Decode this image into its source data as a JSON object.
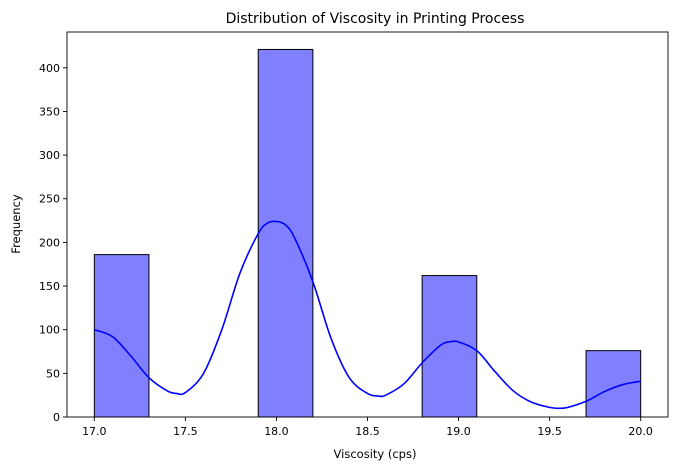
{
  "chart_data": {
    "type": "histogram",
    "title": "Distribution of Viscosity in Printing Process",
    "xlabel": "Viscosity (cps)",
    "ylabel": "Frequency",
    "xlim": [
      16.85,
      20.15
    ],
    "ylim": [
      0,
      441
    ],
    "xticks": [
      17.0,
      17.5,
      18.0,
      18.5,
      19.0,
      19.5,
      20.0
    ],
    "xtick_labels": [
      "17.0",
      "17.5",
      "18.0",
      "18.5",
      "19.0",
      "19.5",
      "20.0"
    ],
    "yticks": [
      0,
      50,
      100,
      150,
      200,
      250,
      300,
      350,
      400
    ],
    "ytick_labels": [
      "0",
      "50",
      "100",
      "150",
      "200",
      "250",
      "300",
      "350",
      "400"
    ],
    "bins": [
      {
        "x0": 17.0,
        "x1": 17.3,
        "count": 186
      },
      {
        "x0": 17.9,
        "x1": 18.2,
        "count": 421
      },
      {
        "x0": 18.8,
        "x1": 19.1,
        "count": 162
      },
      {
        "x0": 19.7,
        "x1": 20.0,
        "count": 76
      }
    ],
    "kde": {
      "x": [
        17.0,
        17.1,
        17.2,
        17.3,
        17.4,
        17.45,
        17.5,
        17.6,
        17.7,
        17.8,
        17.9,
        17.95,
        18.0,
        18.05,
        18.1,
        18.2,
        18.3,
        18.4,
        18.5,
        18.56,
        18.6,
        18.7,
        18.8,
        18.9,
        18.95,
        19.0,
        19.1,
        19.2,
        19.3,
        19.4,
        19.5,
        19.55,
        19.6,
        19.7,
        19.8,
        19.9,
        20.0
      ],
      "y": [
        100,
        92,
        70,
        45,
        30,
        27,
        28,
        50,
        100,
        165,
        210,
        222,
        224,
        220,
        205,
        155,
        90,
        45,
        27,
        24,
        25,
        38,
        62,
        82,
        86,
        86,
        76,
        52,
        30,
        17,
        11,
        10,
        11,
        18,
        29,
        37,
        41
      ]
    },
    "bar_color": "#8080ff",
    "bar_edge_color": "#000000",
    "kde_color": "#0000ff",
    "grid": false,
    "legend": "none"
  }
}
